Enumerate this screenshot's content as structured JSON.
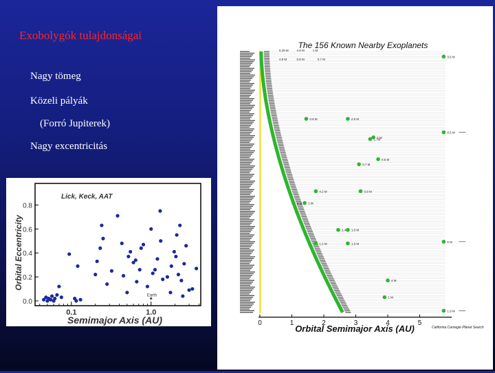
{
  "slide": {
    "title": "Exobolygók tulajdonságai",
    "bullets": [
      "Nagy tömeg",
      "Közeli pályák",
      "(Forró Jupiterek)",
      "Nagy excentricitás"
    ]
  },
  "colors": {
    "background_top": "#1b2699",
    "background_bottom": "#050821",
    "title": "#ff2424",
    "bullet_text": "#ffffff",
    "scatter_points": "#1a2a9a",
    "planet_green": "#2fb52f",
    "star_yellow": "#f2e43a"
  },
  "chart_data": [
    {
      "type": "scatter",
      "title": "",
      "annotation": "Lick, Keck, AAT",
      "earth_label": "Earth",
      "xlabel": "Semimajor Axis (AU)",
      "ylabel": "Orbital Eccentricity",
      "xscale": "log",
      "xlim": [
        0.035,
        4.2
      ],
      "ylim": [
        -0.04,
        0.98
      ],
      "x_ticks": [
        0.1,
        1.0
      ],
      "x_tick_labels": [
        "0.1",
        "1.0"
      ],
      "y_ticks": [
        0.0,
        0.2,
        0.4,
        0.6,
        0.8
      ],
      "y_tick_labels": [
        "0.0",
        "0.2",
        "0.4",
        "0.6",
        "0.8"
      ],
      "earth": {
        "x": 1.0,
        "y": 0.02
      },
      "points": [
        {
          "x": 0.045,
          "y": 0.01
        },
        {
          "x": 0.048,
          "y": 0.03
        },
        {
          "x": 0.05,
          "y": 0.0
        },
        {
          "x": 0.052,
          "y": 0.02
        },
        {
          "x": 0.055,
          "y": 0.01
        },
        {
          "x": 0.057,
          "y": 0.04
        },
        {
          "x": 0.06,
          "y": 0.0
        },
        {
          "x": 0.062,
          "y": 0.02
        },
        {
          "x": 0.066,
          "y": 0.05
        },
        {
          "x": 0.07,
          "y": 0.12
        },
        {
          "x": 0.075,
          "y": 0.03
        },
        {
          "x": 0.094,
          "y": 0.39
        },
        {
          "x": 0.11,
          "y": 0.02
        },
        {
          "x": 0.115,
          "y": 0.0
        },
        {
          "x": 0.12,
          "y": 0.29
        },
        {
          "x": 0.13,
          "y": 0.01
        },
        {
          "x": 0.2,
          "y": 0.22
        },
        {
          "x": 0.21,
          "y": 0.33
        },
        {
          "x": 0.23,
          "y": 0.44
        },
        {
          "x": 0.24,
          "y": 0.63
        },
        {
          "x": 0.25,
          "y": 0.52
        },
        {
          "x": 0.28,
          "y": 0.14
        },
        {
          "x": 0.32,
          "y": 0.25
        },
        {
          "x": 0.38,
          "y": 0.71
        },
        {
          "x": 0.43,
          "y": 0.48
        },
        {
          "x": 0.45,
          "y": 0.21
        },
        {
          "x": 0.5,
          "y": 0.07
        },
        {
          "x": 0.52,
          "y": 0.37
        },
        {
          "x": 0.55,
          "y": 0.41
        },
        {
          "x": 0.6,
          "y": 0.32
        },
        {
          "x": 0.64,
          "y": 0.34
        },
        {
          "x": 0.66,
          "y": 0.16
        },
        {
          "x": 0.72,
          "y": 0.26
        },
        {
          "x": 0.75,
          "y": 0.44
        },
        {
          "x": 0.8,
          "y": 0.47
        },
        {
          "x": 0.9,
          "y": 0.12
        },
        {
          "x": 1.0,
          "y": 0.6
        },
        {
          "x": 1.05,
          "y": 0.23
        },
        {
          "x": 1.12,
          "y": 0.26
        },
        {
          "x": 1.2,
          "y": 0.35
        },
        {
          "x": 1.3,
          "y": 0.75
        },
        {
          "x": 1.32,
          "y": 0.5
        },
        {
          "x": 1.4,
          "y": 0.18
        },
        {
          "x": 1.6,
          "y": 0.2
        },
        {
          "x": 1.75,
          "y": 0.07
        },
        {
          "x": 1.8,
          "y": 0.29
        },
        {
          "x": 1.95,
          "y": 0.41
        },
        {
          "x": 2.05,
          "y": 0.37
        },
        {
          "x": 2.1,
          "y": 0.55
        },
        {
          "x": 2.2,
          "y": 0.22
        },
        {
          "x": 2.3,
          "y": 0.63
        },
        {
          "x": 2.4,
          "y": 0.17
        },
        {
          "x": 2.5,
          "y": 0.04
        },
        {
          "x": 2.6,
          "y": 0.31
        },
        {
          "x": 2.75,
          "y": 0.46
        },
        {
          "x": 3.0,
          "y": 0.09
        },
        {
          "x": 3.3,
          "y": 0.1
        },
        {
          "x": 3.7,
          "y": 0.27
        }
      ]
    },
    {
      "type": "scatter",
      "title": "The 156 Known Nearby Exoplanets",
      "xlabel": "Orbital Semimajor Axis (AU)",
      "xlim": [
        0,
        6
      ],
      "x_ticks": [
        0,
        1,
        2,
        3,
        4,
        5
      ],
      "x_tick_labels": [
        "0",
        "1",
        "2",
        "3",
        "4",
        "5"
      ],
      "credit": "California Carnegie Planet Search",
      "star_count": 156,
      "planets": [
        {
          "x": 1.45,
          "star": 40,
          "label": "0.8 M"
        },
        {
          "x": 2.75,
          "star": 40,
          "label": "2.6 M"
        },
        {
          "x": 3.55,
          "star": 51,
          "label": "2 M"
        },
        {
          "x": 3.45,
          "star": 52,
          "label": "1.7M"
        },
        {
          "x": 3.7,
          "star": 64,
          "label": "0.5 M"
        },
        {
          "x": 3.1,
          "star": 67,
          "label": "0.7 M"
        },
        {
          "x": 1.75,
          "star": 83,
          "label": "4.2 M"
        },
        {
          "x": 3.15,
          "star": 83,
          "label": "0.8 M"
        },
        {
          "x": 1.05,
          "star": 90,
          "label": "4 M"
        },
        {
          "x": 1.4,
          "star": 90,
          "label": "1 M"
        },
        {
          "x": 2.45,
          "star": 106,
          "label": "1.4 M"
        },
        {
          "x": 2.75,
          "star": 106,
          "label": "1.0 M"
        },
        {
          "x": 1.75,
          "star": 114,
          "label": "1.2 M"
        },
        {
          "x": 2.75,
          "star": 114,
          "label": "1.5 M"
        },
        {
          "x": 4.0,
          "star": 136,
          "label": "4 M"
        },
        {
          "x": 3.9,
          "star": 146,
          "label": "1 M"
        }
      ],
      "long_period_planets": [
        {
          "star": 3,
          "label": "3.6 M",
          "arrow": false
        },
        {
          "star": 48,
          "label": "8.5 M",
          "arrow": true
        },
        {
          "star": 113,
          "label": "6 M",
          "arrow": true
        },
        {
          "star": 154,
          "label": "1.9 M",
          "arrow": true
        }
      ],
      "top_labels": [
        "0.29 M",
        "4.9 M",
        "1 M",
        "4.8 M",
        "0.8 M",
        "0.7 M"
      ]
    }
  ]
}
